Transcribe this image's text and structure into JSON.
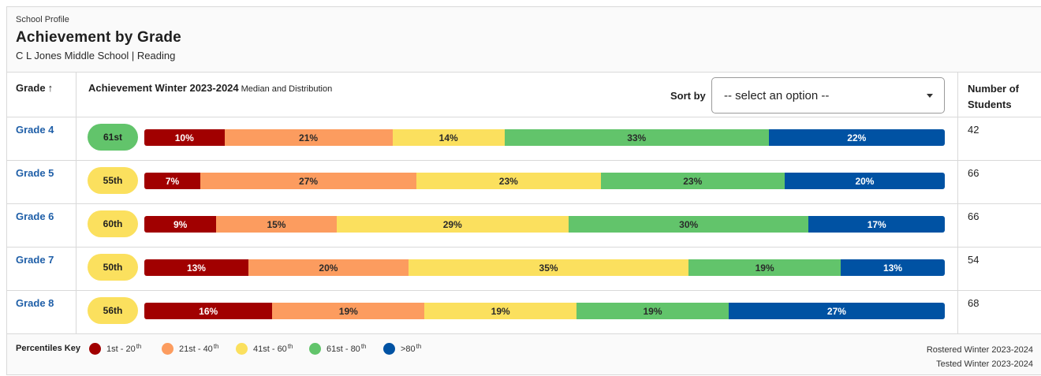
{
  "header": {
    "eyebrow": "School Profile",
    "title": "Achievement by Grade",
    "subtitle": "C L Jones Middle School | Reading"
  },
  "table": {
    "col_grade": "Grade",
    "col_grade_sort_icon": "arrow-up-icon",
    "col_achievement": "Achievement Winter 2023-2024",
    "col_achievement_sub": "Median and Distribution",
    "sort_by_label": "Sort by",
    "sort_select_value": "-- select an option --",
    "col_students_line1": "Number of",
    "col_students_line2": "Students"
  },
  "colors": {
    "band_1": "#a10000",
    "band_2": "#fc9c5f",
    "band_3": "#fbe05e",
    "band_4": "#62c46b",
    "band_5": "#0052a3",
    "link": "#1f5fa8"
  },
  "rows": [
    {
      "grade": "Grade 4",
      "median": "61st",
      "median_band": "green",
      "dist": [
        10,
        21,
        14,
        33,
        22
      ],
      "labels": [
        "10%",
        "21%",
        "14%",
        "33%",
        "22%"
      ],
      "students": "42"
    },
    {
      "grade": "Grade 5",
      "median": "55th",
      "median_band": "yellow",
      "dist": [
        7,
        27,
        23,
        23,
        20
      ],
      "labels": [
        "7%",
        "27%",
        "23%",
        "23%",
        "20%"
      ],
      "students": "66"
    },
    {
      "grade": "Grade 6",
      "median": "60th",
      "median_band": "yellow",
      "dist": [
        9,
        15,
        29,
        30,
        17
      ],
      "labels": [
        "9%",
        "15%",
        "29%",
        "30%",
        "17%"
      ],
      "students": "66"
    },
    {
      "grade": "Grade 7",
      "median": "50th",
      "median_band": "yellow",
      "dist": [
        13,
        20,
        35,
        19,
        13
      ],
      "labels": [
        "13%",
        "20%",
        "35%",
        "19%",
        "13%"
      ],
      "students": "54"
    },
    {
      "grade": "Grade 8",
      "median": "56th",
      "median_band": "yellow",
      "dist": [
        16,
        19,
        19,
        19,
        27
      ],
      "labels": [
        "16%",
        "19%",
        "19%",
        "19%",
        "27%"
      ],
      "students": "68"
    }
  ],
  "footer": {
    "key_label": "Percentiles Key",
    "keys": [
      {
        "base": "1st - 20",
        "sup": "th"
      },
      {
        "base": "21st - 40",
        "sup": "th"
      },
      {
        "base": "41st - 60",
        "sup": "th"
      },
      {
        "base": "61st - 80",
        "sup": "th"
      },
      {
        "base": ">80",
        "sup": "th"
      }
    ],
    "rostered": "Rostered Winter 2023-2024",
    "tested": "Tested Winter 2023-2024"
  }
}
